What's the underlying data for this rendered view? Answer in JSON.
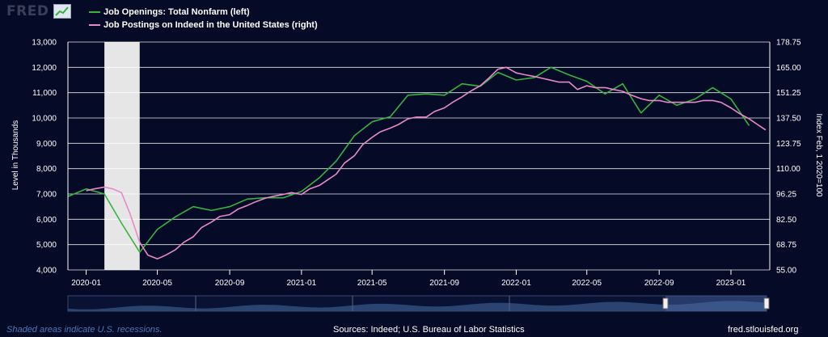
{
  "brand": {
    "logo_text": "FRED",
    "logo_icon": "chart-line-icon"
  },
  "footer": {
    "note": "Shaded areas indicate U.S. recessions.",
    "sources": "Sources: Indeed; U.S. Bureau of Labor Statistics",
    "url": "fred.stlouisfed.org"
  },
  "colors": {
    "background": "#050a26",
    "openings": "#36b240",
    "postings": "#e889c8",
    "recession": "#e6e6e6",
    "grid": "#ffffff",
    "navigator_fill": "#2e4a78"
  },
  "chart_data": {
    "type": "line",
    "xlabel": "",
    "ylabel": "Level in Thousands",
    "y2label": "Index Feb, 1 2020=100",
    "ylim": [
      4000,
      13000
    ],
    "y2lim": [
      55.0,
      178.75
    ],
    "yticks": [
      "4,000",
      "5,000",
      "6,000",
      "7,000",
      "8,000",
      "9,000",
      "10,000",
      "11,000",
      "12,000",
      "13,000"
    ],
    "y2ticks": [
      "55.00",
      "68.75",
      "82.50",
      "96.25",
      "110.00",
      "123.75",
      "137.50",
      "151.25",
      "165.00",
      "178.75"
    ],
    "xticks": [
      "2020-01",
      "2020-05",
      "2020-09",
      "2021-01",
      "2021-05",
      "2021-09",
      "2022-01",
      "2022-05",
      "2022-09",
      "2023-01"
    ],
    "grid": true,
    "legend_position": "top-left",
    "recession": {
      "start": "2020-02",
      "end": "2020-04"
    },
    "series": [
      {
        "name": "Job Openings: Total Nonfarm (left)",
        "axis": "left",
        "x": [
          "2019-12",
          "2020-01",
          "2020-02",
          "2020-03",
          "2020-04",
          "2020-05",
          "2020-06",
          "2020-07",
          "2020-08",
          "2020-09",
          "2020-10",
          "2020-11",
          "2020-12",
          "2021-01",
          "2021-02",
          "2021-03",
          "2021-04",
          "2021-05",
          "2021-06",
          "2021-07",
          "2021-08",
          "2021-09",
          "2021-10",
          "2021-11",
          "2021-12",
          "2022-01",
          "2022-02",
          "2022-03",
          "2022-04",
          "2022-05",
          "2022-06",
          "2022-07",
          "2022-08",
          "2022-09",
          "2022-10",
          "2022-11",
          "2022-12",
          "2023-01",
          "2023-02"
        ],
        "values": [
          6900,
          7200,
          7000,
          5850,
          4700,
          5600,
          6100,
          6500,
          6350,
          6500,
          6800,
          6850,
          6850,
          7100,
          7650,
          8300,
          9300,
          9850,
          10050,
          10900,
          10950,
          10900,
          11350,
          11250,
          11800,
          11500,
          11600,
          12000,
          11700,
          11450,
          10950,
          11350,
          10200,
          10900,
          10500,
          10750,
          11200,
          10750,
          9700
        ]
      },
      {
        "name": "Job Postings on Indeed in the United States (right)",
        "axis": "right",
        "x": [
          "2020-01-01",
          "2020-01-15",
          "2020-02-01",
          "2020-02-15",
          "2020-03-01",
          "2020-03-15",
          "2020-04-01",
          "2020-04-15",
          "2020-05-01",
          "2020-05-15",
          "2020-06-01",
          "2020-06-15",
          "2020-07-01",
          "2020-07-15",
          "2020-08-01",
          "2020-08-15",
          "2020-09-01",
          "2020-09-15",
          "2020-10-01",
          "2020-10-15",
          "2020-11-01",
          "2020-11-15",
          "2020-12-01",
          "2020-12-15",
          "2021-01-01",
          "2021-01-15",
          "2021-02-01",
          "2021-02-15",
          "2021-03-01",
          "2021-03-15",
          "2021-04-01",
          "2021-04-15",
          "2021-05-01",
          "2021-05-15",
          "2021-06-01",
          "2021-06-15",
          "2021-07-01",
          "2021-07-15",
          "2021-08-01",
          "2021-08-15",
          "2021-09-01",
          "2021-09-15",
          "2021-10-01",
          "2021-10-15",
          "2021-11-01",
          "2021-11-15",
          "2021-12-01",
          "2021-12-15",
          "2022-01-01",
          "2022-01-15",
          "2022-02-01",
          "2022-02-15",
          "2022-03-01",
          "2022-03-15",
          "2022-04-01",
          "2022-04-15",
          "2022-05-01",
          "2022-05-15",
          "2022-06-01",
          "2022-06-15",
          "2022-07-01",
          "2022-07-15",
          "2022-08-01",
          "2022-08-15",
          "2022-09-01",
          "2022-09-15",
          "2022-10-01",
          "2022-10-15",
          "2022-11-01",
          "2022-11-15",
          "2022-12-01",
          "2022-12-15",
          "2023-01-01",
          "2023-01-15",
          "2023-02-01",
          "2023-02-15",
          "2023-03-01"
        ],
        "values": [
          98,
          99,
          100,
          99,
          97,
          86,
          70,
          63,
          61,
          63,
          66,
          70,
          73,
          78,
          81,
          84,
          85,
          88,
          90,
          92,
          94,
          95,
          96,
          97,
          96,
          99,
          101,
          104,
          107,
          113,
          117,
          123,
          127,
          130,
          132,
          134,
          137,
          138,
          138,
          141,
          143,
          146,
          149,
          152,
          155,
          159,
          164,
          165,
          162,
          161,
          160,
          159,
          158,
          157,
          157,
          153,
          155,
          154,
          154,
          153,
          152,
          150,
          148,
          147,
          147,
          146,
          146,
          146,
          146,
          147,
          147,
          146,
          143,
          140,
          137,
          134,
          131
        ]
      }
    ]
  }
}
